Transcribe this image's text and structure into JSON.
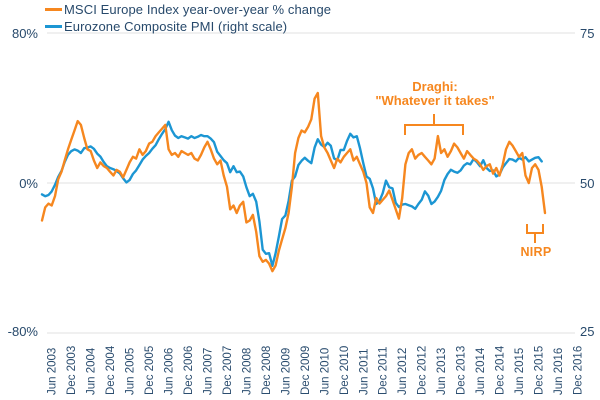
{
  "colors": {
    "msci_orange": "#F6871F",
    "pmi_blue": "#1C96D3",
    "axis_text": "#27496B",
    "gridline": "#E6E6E6"
  },
  "legend": {
    "items": [
      {
        "label": "MSCI Europe Index year-over-year % change",
        "color": "#F6871F"
      },
      {
        "label": "Eurozone Composite PMI (right scale)",
        "color": "#1C96D3"
      }
    ]
  },
  "axes": {
    "left_ticks": [
      "80%",
      "0%",
      "-80%"
    ],
    "right_ticks": [
      "75",
      "50",
      "25"
    ]
  },
  "annotations": {
    "draghi_line1": "Draghi:",
    "draghi_line2": "\"Whatever it takes\"",
    "nirp": "NIRP"
  },
  "chart_data": {
    "type": "line",
    "title": "",
    "x_start": "2003-03",
    "x_freq": "monthly",
    "x_tick_labels": [
      "Jun 2003",
      "Dec 2003",
      "Jun 2004",
      "Dec 2004",
      "Jun 2005",
      "Dec 2005",
      "Jun 2006",
      "Dec 2006",
      "Jun 2007",
      "Dec 2007",
      "Jun 2008",
      "Dec 2008",
      "Jun 2009",
      "Dec 2009",
      "Jun 2010",
      "Dec 2010",
      "Jun 2011",
      "Dec 2011",
      "Jun 2012",
      "Dec 2012",
      "Jun 2013",
      "Dec 2013",
      "Jun 2014",
      "Dec 2014",
      "Jun 2015",
      "Dec 2015",
      "Jun 2016",
      "Dec 2016"
    ],
    "left_axis": {
      "label": "MSCI Europe YoY % change",
      "ticks": [
        80,
        0,
        -80
      ],
      "range": [
        -80,
        80
      ]
    },
    "right_axis": {
      "label": "Eurozone Composite PMI",
      "ticks": [
        75,
        50,
        25
      ],
      "range": [
        25,
        75
      ]
    },
    "grid": "horizontal",
    "legend_position": "top-left",
    "series": [
      {
        "name": "MSCI Europe Index year-over-year % change",
        "axis": "left",
        "color": "#F6871F",
        "values": [
          -20,
          -13,
          -11,
          -12,
          -7,
          2,
          6,
          12,
          18,
          23,
          28,
          33,
          31,
          24,
          18,
          17,
          12,
          8,
          11,
          9,
          8,
          6,
          4,
          7,
          6,
          3,
          7,
          11,
          14,
          13,
          18,
          15,
          17,
          21,
          22,
          25,
          27,
          29,
          31,
          18,
          15,
          16,
          14,
          17,
          16,
          15,
          16,
          13,
          12,
          15,
          19,
          22,
          18,
          13,
          10,
          12,
          4,
          -2,
          -14,
          -12,
          -16,
          -12,
          -10,
          -21,
          -20,
          -17,
          -26,
          -39,
          -42,
          -41,
          -43,
          -47,
          -44,
          -36,
          -30,
          -24,
          -16,
          -2,
          16,
          24,
          28,
          27,
          30,
          34,
          45,
          48,
          25,
          19,
          16,
          12,
          8,
          13,
          11,
          14,
          16,
          18,
          12,
          14,
          10,
          6,
          0,
          -13,
          -16,
          -8,
          -11,
          -9,
          -7,
          -4,
          -9,
          -14,
          -19,
          -8,
          10,
          16,
          18,
          13,
          15,
          16,
          14,
          12,
          10,
          13,
          25,
          16,
          18,
          14,
          17,
          21,
          19,
          16,
          13,
          17,
          15,
          13,
          12,
          10,
          7,
          9,
          10,
          5,
          8,
          4,
          10,
          18,
          22,
          20,
          17,
          14,
          16,
          4,
          0,
          8,
          10,
          7,
          -2,
          -16
        ]
      },
      {
        "name": "Eurozone Composite PMI (right scale)",
        "axis": "right",
        "color": "#1C96D3",
        "values": [
          48.1,
          47.8,
          48.0,
          48.6,
          49.7,
          51.0,
          52.0,
          53.5,
          54.7,
          55.3,
          55.6,
          55.4,
          55.0,
          55.8,
          55.9,
          56.1,
          55.7,
          54.9,
          54.4,
          53.5,
          52.8,
          52.5,
          52.3,
          52.0,
          51.6,
          50.8,
          50.1,
          50.5,
          51.5,
          52.1,
          53.0,
          53.9,
          54.5,
          55.0,
          55.7,
          56.3,
          57.3,
          58.2,
          59.0,
          60.2,
          58.8,
          57.9,
          57.5,
          57.8,
          57.6,
          57.4,
          57.8,
          57.5,
          57.7,
          58.0,
          57.8,
          57.8,
          57.4,
          56.8,
          55.2,
          54.5,
          53.8,
          53.3,
          51.8,
          52.8,
          51.8,
          51.9,
          51.1,
          49.3,
          47.8,
          48.2,
          46.9,
          43.6,
          38.9,
          38.2,
          38.3,
          36.2,
          38.3,
          41.1,
          44.0,
          44.6,
          47.0,
          50.4,
          51.1,
          53.0,
          53.7,
          54.2,
          53.7,
          53.3,
          55.9,
          57.3,
          56.4,
          56.0,
          56.7,
          56.2,
          54.1,
          53.8,
          55.5,
          55.5,
          57.0,
          58.2,
          57.6,
          57.8,
          55.8,
          53.3,
          51.1,
          50.7,
          49.1,
          46.5,
          47.0,
          48.3,
          50.4,
          49.3,
          49.1,
          46.7,
          46.0,
          46.4,
          46.5,
          46.3,
          46.1,
          45.7,
          46.5,
          47.2,
          48.6,
          47.9,
          46.5,
          46.9,
          47.7,
          48.7,
          50.5,
          51.5,
          52.2,
          51.9,
          51.7,
          52.1,
          52.9,
          53.3,
          53.1,
          54.0,
          53.5,
          52.8,
          53.8,
          52.5,
          52.0,
          52.1,
          51.1,
          51.4,
          52.6,
          53.3,
          54.0,
          53.9,
          53.6,
          54.2,
          53.9,
          54.3,
          53.6,
          53.9,
          54.2,
          54.3,
          53.6
        ]
      }
    ],
    "annotations": [
      {
        "text": "Draghi: \"Whatever it takes\"",
        "x_span": [
          "2012-07",
          "2014-01"
        ]
      },
      {
        "text": "NIRP",
        "x": "2016-01"
      }
    ]
  }
}
